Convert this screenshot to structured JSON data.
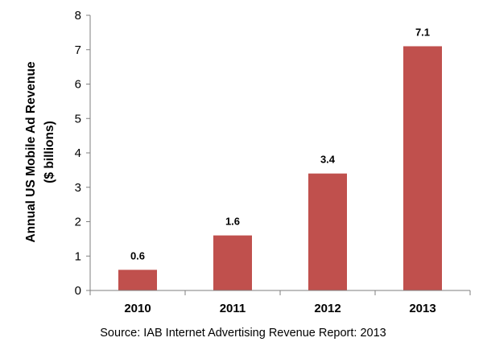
{
  "chart_data": {
    "type": "bar",
    "categories": [
      "2010",
      "2011",
      "2012",
      "2013"
    ],
    "values": [
      0.6,
      1.6,
      3.4,
      7.1
    ],
    "data_labels": [
      "0.6",
      "1.6",
      "3.4",
      "7.1"
    ],
    "ylabel_line1": "Annual  US Mobile Ad Revenue",
    "ylabel_line2": "($ billions)",
    "xlabel": "",
    "ylim": [
      0,
      8
    ],
    "yticks": [
      0,
      1,
      2,
      3,
      4,
      5,
      6,
      7,
      8
    ],
    "grid": false,
    "legend": "none",
    "bar_color": "#c0504d",
    "axis_color": "#7f7f7f"
  },
  "source_note": "Source: IAB Internet Advertising Revenue Report: 2013"
}
